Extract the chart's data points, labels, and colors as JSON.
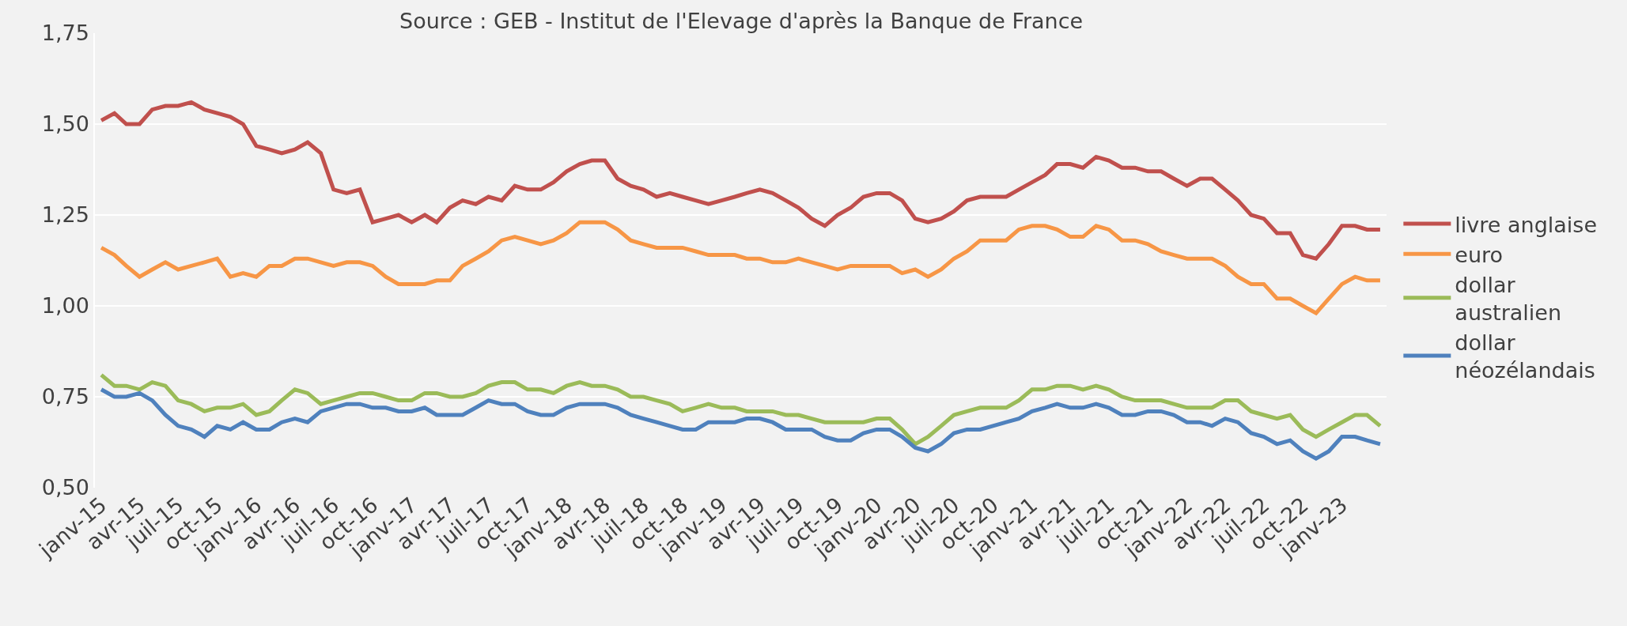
{
  "chart_data": {
    "type": "line",
    "annotations": [
      "Source : GEB - Institut de l'Elevage d'après la Banque de France"
    ],
    "x": [
      "2015-01",
      "2015-02",
      "2015-03",
      "2015-04",
      "2015-05",
      "2015-06",
      "2015-07",
      "2015-08",
      "2015-09",
      "2015-10",
      "2015-11",
      "2015-12",
      "2016-01",
      "2016-02",
      "2016-03",
      "2016-04",
      "2016-05",
      "2016-06",
      "2016-07",
      "2016-08",
      "2016-09",
      "2016-10",
      "2016-11",
      "2016-12",
      "2017-01",
      "2017-02",
      "2017-03",
      "2017-04",
      "2017-05",
      "2017-06",
      "2017-07",
      "2017-08",
      "2017-09",
      "2017-10",
      "2017-11",
      "2017-12",
      "2018-01",
      "2018-02",
      "2018-03",
      "2018-04",
      "2018-05",
      "2018-06",
      "2018-07",
      "2018-08",
      "2018-09",
      "2018-10",
      "2018-11",
      "2018-12",
      "2019-01",
      "2019-02",
      "2019-03",
      "2019-04",
      "2019-05",
      "2019-06",
      "2019-07",
      "2019-08",
      "2019-09",
      "2019-10",
      "2019-11",
      "2019-12",
      "2020-01",
      "2020-02",
      "2020-03",
      "2020-04",
      "2020-05",
      "2020-06",
      "2020-07",
      "2020-08",
      "2020-09",
      "2020-10",
      "2020-11",
      "2020-12",
      "2021-01",
      "2021-02",
      "2021-03",
      "2021-04",
      "2021-05",
      "2021-06",
      "2021-07",
      "2021-08",
      "2021-09",
      "2021-10",
      "2021-11",
      "2021-12",
      "2022-01",
      "2022-02",
      "2022-03",
      "2022-04",
      "2022-05",
      "2022-06",
      "2022-07",
      "2022-08",
      "2022-09",
      "2022-10",
      "2022-11",
      "2022-12",
      "2023-01",
      "2023-02",
      "2023-03",
      "2023-04"
    ],
    "series": [
      {
        "name": "livre anglaise",
        "color": "#c0504d",
        "values": [
          1.51,
          1.53,
          1.5,
          1.5,
          1.54,
          1.55,
          1.55,
          1.56,
          1.54,
          1.53,
          1.52,
          1.5,
          1.44,
          1.43,
          1.42,
          1.43,
          1.45,
          1.42,
          1.32,
          1.31,
          1.32,
          1.23,
          1.24,
          1.25,
          1.23,
          1.25,
          1.23,
          1.27,
          1.29,
          1.28,
          1.3,
          1.29,
          1.33,
          1.32,
          1.32,
          1.34,
          1.37,
          1.39,
          1.4,
          1.4,
          1.35,
          1.33,
          1.32,
          1.3,
          1.31,
          1.3,
          1.29,
          1.28,
          1.29,
          1.3,
          1.31,
          1.32,
          1.31,
          1.29,
          1.27,
          1.24,
          1.22,
          1.25,
          1.27,
          1.3,
          1.31,
          1.31,
          1.29,
          1.24,
          1.23,
          1.24,
          1.26,
          1.29,
          1.3,
          1.3,
          1.3,
          1.32,
          1.34,
          1.36,
          1.39,
          1.39,
          1.38,
          1.41,
          1.4,
          1.38,
          1.38,
          1.37,
          1.37,
          1.35,
          1.33,
          1.35,
          1.35,
          1.32,
          1.29,
          1.25,
          1.24,
          1.2,
          1.2,
          1.14,
          1.13,
          1.17,
          1.22,
          1.22,
          1.21,
          1.21
        ]
      },
      {
        "name": "euro",
        "color": "#f79646",
        "values": [
          1.16,
          1.14,
          1.11,
          1.08,
          1.1,
          1.12,
          1.1,
          1.11,
          1.12,
          1.13,
          1.08,
          1.09,
          1.08,
          1.11,
          1.11,
          1.13,
          1.13,
          1.12,
          1.11,
          1.12,
          1.12,
          1.11,
          1.08,
          1.06,
          1.06,
          1.06,
          1.07,
          1.07,
          1.11,
          1.13,
          1.15,
          1.18,
          1.19,
          1.18,
          1.17,
          1.18,
          1.2,
          1.23,
          1.23,
          1.23,
          1.21,
          1.18,
          1.17,
          1.16,
          1.16,
          1.16,
          1.15,
          1.14,
          1.14,
          1.14,
          1.13,
          1.13,
          1.12,
          1.12,
          1.13,
          1.12,
          1.11,
          1.1,
          1.11,
          1.11,
          1.11,
          1.11,
          1.09,
          1.1,
          1.08,
          1.1,
          1.13,
          1.15,
          1.18,
          1.18,
          1.18,
          1.21,
          1.22,
          1.22,
          1.21,
          1.19,
          1.19,
          1.22,
          1.21,
          1.18,
          1.18,
          1.17,
          1.15,
          1.14,
          1.13,
          1.13,
          1.13,
          1.11,
          1.08,
          1.06,
          1.06,
          1.02,
          1.02,
          1.0,
          0.98,
          1.02,
          1.06,
          1.08,
          1.07,
          1.07
        ]
      },
      {
        "name": "dollar australien",
        "color": "#9bbb59",
        "values": [
          0.81,
          0.78,
          0.78,
          0.77,
          0.79,
          0.78,
          0.74,
          0.73,
          0.71,
          0.72,
          0.72,
          0.73,
          0.7,
          0.71,
          0.74,
          0.77,
          0.76,
          0.73,
          0.74,
          0.75,
          0.76,
          0.76,
          0.75,
          0.74,
          0.74,
          0.76,
          0.76,
          0.75,
          0.75,
          0.76,
          0.78,
          0.79,
          0.79,
          0.77,
          0.77,
          0.76,
          0.78,
          0.79,
          0.78,
          0.78,
          0.77,
          0.75,
          0.75,
          0.74,
          0.73,
          0.71,
          0.72,
          0.73,
          0.72,
          0.72,
          0.71,
          0.71,
          0.71,
          0.7,
          0.7,
          0.69,
          0.68,
          0.68,
          0.68,
          0.68,
          0.69,
          0.69,
          0.66,
          0.62,
          0.64,
          0.67,
          0.7,
          0.71,
          0.72,
          0.72,
          0.72,
          0.74,
          0.77,
          0.77,
          0.78,
          0.78,
          0.77,
          0.78,
          0.77,
          0.75,
          0.74,
          0.74,
          0.74,
          0.73,
          0.72,
          0.72,
          0.72,
          0.74,
          0.74,
          0.71,
          0.7,
          0.69,
          0.7,
          0.66,
          0.64,
          0.66,
          0.68,
          0.7,
          0.7,
          0.67
        ]
      },
      {
        "name": "dollar néozélandais",
        "color": "#4f81bd",
        "values": [
          0.77,
          0.75,
          0.75,
          0.76,
          0.74,
          0.7,
          0.67,
          0.66,
          0.64,
          0.67,
          0.66,
          0.68,
          0.66,
          0.66,
          0.68,
          0.69,
          0.68,
          0.71,
          0.72,
          0.73,
          0.73,
          0.72,
          0.72,
          0.71,
          0.71,
          0.72,
          0.7,
          0.7,
          0.7,
          0.72,
          0.74,
          0.73,
          0.73,
          0.71,
          0.7,
          0.7,
          0.72,
          0.73,
          0.73,
          0.73,
          0.72,
          0.7,
          0.69,
          0.68,
          0.67,
          0.66,
          0.66,
          0.68,
          0.68,
          0.68,
          0.69,
          0.69,
          0.68,
          0.66,
          0.66,
          0.66,
          0.64,
          0.63,
          0.63,
          0.65,
          0.66,
          0.66,
          0.64,
          0.61,
          0.6,
          0.62,
          0.65,
          0.66,
          0.66,
          0.67,
          0.68,
          0.69,
          0.71,
          0.72,
          0.73,
          0.72,
          0.72,
          0.73,
          0.72,
          0.7,
          0.7,
          0.71,
          0.71,
          0.7,
          0.68,
          0.68,
          0.67,
          0.69,
          0.68,
          0.65,
          0.64,
          0.62,
          0.63,
          0.6,
          0.58,
          0.6,
          0.64,
          0.64,
          0.63,
          0.62
        ]
      }
    ],
    "xlim": [
      "2014-12-17",
      "2023-04-16"
    ],
    "xticks": [
      {
        "value": "2015-01",
        "label": "janv-15"
      },
      {
        "value": "2015-04",
        "label": "avr-15"
      },
      {
        "value": "2015-07",
        "label": "juil-15"
      },
      {
        "value": "2015-10",
        "label": "oct-15"
      },
      {
        "value": "2016-01",
        "label": "janv-16"
      },
      {
        "value": "2016-04",
        "label": "avr-16"
      },
      {
        "value": "2016-07",
        "label": "juil-16"
      },
      {
        "value": "2016-10",
        "label": "oct-16"
      },
      {
        "value": "2017-01",
        "label": "janv-17"
      },
      {
        "value": "2017-04",
        "label": "avr-17"
      },
      {
        "value": "2017-07",
        "label": "juil-17"
      },
      {
        "value": "2017-10",
        "label": "oct-17"
      },
      {
        "value": "2018-01",
        "label": "janv-18"
      },
      {
        "value": "2018-04",
        "label": "avr-18"
      },
      {
        "value": "2018-07",
        "label": "juil-18"
      },
      {
        "value": "2018-10",
        "label": "oct-18"
      },
      {
        "value": "2019-01",
        "label": "janv-19"
      },
      {
        "value": "2019-04",
        "label": "avr-19"
      },
      {
        "value": "2019-07",
        "label": "juil-19"
      },
      {
        "value": "2019-10",
        "label": "oct-19"
      },
      {
        "value": "2020-01",
        "label": "janv-20"
      },
      {
        "value": "2020-04",
        "label": "avr-20"
      },
      {
        "value": "2020-07",
        "label": "juil-20"
      },
      {
        "value": "2020-10",
        "label": "oct-20"
      },
      {
        "value": "2021-01",
        "label": "janv-21"
      },
      {
        "value": "2021-04",
        "label": "avr-21"
      },
      {
        "value": "2021-07",
        "label": "juil-21"
      },
      {
        "value": "2021-10",
        "label": "oct-21"
      },
      {
        "value": "2022-01",
        "label": "janv-22"
      },
      {
        "value": "2022-04",
        "label": "avr-22"
      },
      {
        "value": "2022-07",
        "label": "juil-22"
      },
      {
        "value": "2022-10",
        "label": "oct-22"
      },
      {
        "value": "2023-01",
        "label": "janv-23"
      }
    ],
    "ylim": [
      0.5,
      1.75
    ],
    "yticks": [
      {
        "value": 0.5,
        "label": "0,50"
      },
      {
        "value": 0.75,
        "label": "0,75"
      },
      {
        "value": 1.0,
        "label": "1,00"
      },
      {
        "value": 1.25,
        "label": "1,25"
      },
      {
        "value": 1.5,
        "label": "1,50"
      },
      {
        "value": 1.75,
        "label": "1,75"
      }
    ],
    "grid": "y",
    "legend": "right",
    "marker": "none",
    "line_style": "solid"
  }
}
